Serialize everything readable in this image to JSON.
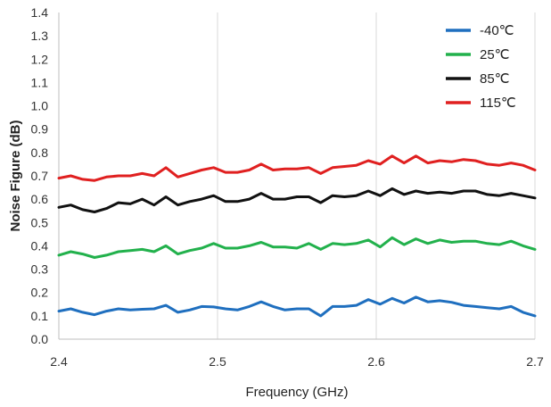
{
  "chart_data": {
    "type": "line",
    "xlabel": "Frequency (GHz)",
    "ylabel": "Noise Figure (dB)",
    "xlim": [
      2.4,
      2.7
    ],
    "ylim": [
      0.0,
      1.4
    ],
    "xticks": [
      "2.4",
      "2.5",
      "2.6",
      "2.7"
    ],
    "yticks": [
      "0.0",
      "0.1",
      "0.2",
      "0.3",
      "0.4",
      "0.5",
      "0.6",
      "0.7",
      "0.8",
      "0.9",
      "1.0",
      "1.1",
      "1.2",
      "1.3",
      "1.4"
    ],
    "grid": "vertical",
    "legend_position": "top-right",
    "x": [
      2.4,
      2.4075,
      2.415,
      2.4225,
      2.43,
      2.4375,
      2.445,
      2.4525,
      2.46,
      2.4675,
      2.475,
      2.4825,
      2.49,
      2.4975,
      2.505,
      2.5125,
      2.52,
      2.5275,
      2.535,
      2.5425,
      2.55,
      2.5575,
      2.565,
      2.5725,
      2.58,
      2.5875,
      2.595,
      2.6025,
      2.61,
      2.6175,
      2.625,
      2.6325,
      2.64,
      2.6475,
      2.655,
      2.6625,
      2.67,
      2.6775,
      2.685,
      2.6925,
      2.7
    ],
    "series": [
      {
        "name": "-40℃",
        "color": "#1f6fbf",
        "values": [
          0.12,
          0.13,
          0.115,
          0.105,
          0.12,
          0.13,
          0.125,
          0.128,
          0.13,
          0.145,
          0.115,
          0.125,
          0.14,
          0.138,
          0.13,
          0.125,
          0.14,
          0.16,
          0.14,
          0.125,
          0.13,
          0.13,
          0.1,
          0.14,
          0.14,
          0.145,
          0.17,
          0.15,
          0.175,
          0.155,
          0.18,
          0.16,
          0.165,
          0.158,
          0.145,
          0.14,
          0.135,
          0.13,
          0.14,
          0.115,
          0.1
        ]
      },
      {
        "name": "25℃",
        "color": "#22b14c",
        "values": [
          0.36,
          0.375,
          0.365,
          0.35,
          0.36,
          0.375,
          0.38,
          0.385,
          0.375,
          0.4,
          0.365,
          0.38,
          0.39,
          0.41,
          0.39,
          0.39,
          0.4,
          0.415,
          0.395,
          0.395,
          0.39,
          0.41,
          0.385,
          0.41,
          0.405,
          0.41,
          0.425,
          0.395,
          0.435,
          0.405,
          0.43,
          0.41,
          0.425,
          0.415,
          0.42,
          0.42,
          0.41,
          0.405,
          0.42,
          0.4,
          0.385
        ]
      },
      {
        "name": "85℃",
        "color": "#111111",
        "values": [
          0.565,
          0.575,
          0.555,
          0.545,
          0.56,
          0.585,
          0.58,
          0.6,
          0.575,
          0.61,
          0.575,
          0.59,
          0.6,
          0.615,
          0.59,
          0.59,
          0.6,
          0.625,
          0.6,
          0.6,
          0.61,
          0.61,
          0.585,
          0.615,
          0.61,
          0.615,
          0.635,
          0.615,
          0.645,
          0.62,
          0.635,
          0.625,
          0.63,
          0.625,
          0.635,
          0.635,
          0.62,
          0.615,
          0.625,
          0.615,
          0.605
        ]
      },
      {
        "name": "115℃",
        "color": "#e02020",
        "values": [
          0.69,
          0.7,
          0.685,
          0.68,
          0.695,
          0.7,
          0.7,
          0.71,
          0.7,
          0.735,
          0.695,
          0.71,
          0.725,
          0.735,
          0.715,
          0.715,
          0.725,
          0.75,
          0.725,
          0.73,
          0.73,
          0.735,
          0.71,
          0.735,
          0.74,
          0.745,
          0.765,
          0.75,
          0.785,
          0.755,
          0.785,
          0.755,
          0.765,
          0.76,
          0.77,
          0.765,
          0.75,
          0.745,
          0.755,
          0.745,
          0.725
        ]
      }
    ]
  }
}
